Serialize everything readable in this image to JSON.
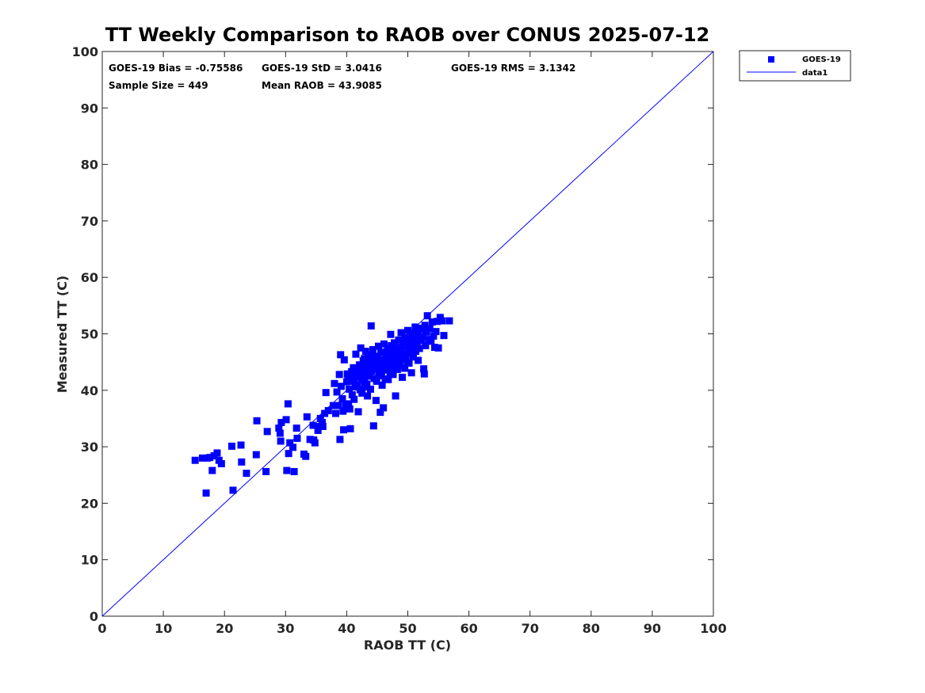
{
  "chart_data": {
    "type": "scatter",
    "title": "TT Weekly Comparison to RAOB over CONUS 2025-07-12",
    "xlabel": "RAOB TT (C)",
    "ylabel": "Measured TT (C)",
    "xlim": [
      0,
      100
    ],
    "ylim": [
      0,
      100
    ],
    "xticks": [
      0,
      10,
      20,
      30,
      40,
      50,
      60,
      70,
      80,
      90,
      100
    ],
    "yticks": [
      0,
      10,
      20,
      30,
      40,
      50,
      60,
      70,
      80,
      90,
      100
    ],
    "grid": false,
    "legend_position": "outside top-right",
    "stats": {
      "bias": "GOES-19 Bias = -0.75586",
      "std": "GOES-19 StD = 3.0416",
      "rms": "GOES-19 RMS = 3.1342",
      "sample": "Sample Size = 449",
      "mean": "Mean RAOB = 43.9085"
    },
    "series": [
      {
        "name": "GOES-19",
        "marker": "square",
        "color": "#0000ff",
        "points": [
          [
            15.2,
            27.6
          ],
          [
            16.4,
            28.0
          ],
          [
            17.0,
            21.8
          ],
          [
            17.2,
            28.0
          ],
          [
            17.6,
            28.1
          ],
          [
            18.0,
            25.8
          ],
          [
            18.3,
            28.4
          ],
          [
            18.8,
            28.9
          ],
          [
            19.1,
            27.6
          ],
          [
            19.5,
            27.0
          ],
          [
            21.2,
            30.1
          ],
          [
            21.4,
            22.3
          ],
          [
            22.7,
            30.3
          ],
          [
            22.8,
            27.3
          ],
          [
            23.6,
            25.3
          ],
          [
            25.2,
            28.6
          ],
          [
            25.3,
            34.6
          ],
          [
            26.8,
            25.6
          ],
          [
            27.0,
            32.7
          ],
          [
            28.9,
            33.3
          ],
          [
            29.1,
            32.4
          ],
          [
            29.2,
            31.0
          ],
          [
            29.3,
            34.3
          ],
          [
            30.1,
            34.8
          ],
          [
            30.2,
            25.8
          ],
          [
            30.4,
            37.6
          ],
          [
            30.5,
            28.8
          ],
          [
            30.7,
            30.7
          ],
          [
            31.2,
            29.9
          ],
          [
            31.4,
            25.6
          ],
          [
            31.8,
            33.3
          ],
          [
            31.9,
            31.5
          ],
          [
            33.0,
            28.7
          ],
          [
            33.3,
            28.3
          ],
          [
            33.5,
            35.3
          ],
          [
            34.0,
            31.3
          ],
          [
            34.5,
            33.8
          ],
          [
            34.6,
            31.2
          ],
          [
            34.8,
            30.7
          ],
          [
            35.3,
            32.9
          ],
          [
            35.4,
            33.6
          ],
          [
            35.7,
            35.0
          ],
          [
            36.0,
            34.3
          ],
          [
            36.1,
            33.6
          ],
          [
            36.4,
            35.9
          ],
          [
            36.6,
            39.6
          ],
          [
            37.0,
            36.4
          ],
          [
            37.8,
            37.3
          ],
          [
            38.0,
            41.2
          ],
          [
            38.2,
            35.9
          ],
          [
            38.4,
            39.7
          ],
          [
            38.6,
            37.3
          ],
          [
            38.8,
            42.8
          ],
          [
            38.9,
            31.3
          ],
          [
            39.0,
            46.3
          ],
          [
            39.1,
            40.7
          ],
          [
            39.3,
            38.5
          ],
          [
            39.4,
            36.3
          ],
          [
            39.5,
            33.0
          ],
          [
            39.6,
            45.4
          ],
          [
            39.8,
            37.4
          ],
          [
            40.0,
            41.5
          ],
          [
            40.2,
            42.0
          ],
          [
            40.3,
            37.6
          ],
          [
            40.4,
            40.2
          ],
          [
            40.5,
            36.7
          ],
          [
            40.6,
            33.2
          ],
          [
            40.8,
            43.3
          ],
          [
            40.9,
            39.2
          ],
          [
            41.0,
            41.6
          ],
          [
            41.1,
            44.0
          ],
          [
            41.2,
            38.4
          ],
          [
            41.3,
            42.7
          ],
          [
            41.4,
            40.6
          ],
          [
            41.5,
            46.4
          ],
          [
            41.6,
            43.9
          ],
          [
            41.8,
            41.0
          ],
          [
            41.9,
            36.2
          ],
          [
            42.0,
            42.3
          ],
          [
            42.1,
            44.5
          ],
          [
            42.2,
            40.1
          ],
          [
            42.3,
            47.5
          ],
          [
            42.4,
            43.0
          ],
          [
            42.5,
            39.5
          ],
          [
            42.6,
            41.8
          ],
          [
            42.7,
            45.2
          ],
          [
            42.8,
            44.1
          ],
          [
            42.9,
            42.2
          ],
          [
            43.0,
            40.6
          ],
          [
            43.1,
            46.9
          ],
          [
            43.2,
            43.6
          ],
          [
            43.3,
            41.1
          ],
          [
            43.4,
            39.0
          ],
          [
            43.5,
            45.8
          ],
          [
            43.6,
            44.7
          ],
          [
            43.7,
            42.9
          ],
          [
            43.8,
            46.3
          ],
          [
            43.9,
            40.2
          ],
          [
            44.0,
            51.4
          ],
          [
            44.1,
            43.4
          ],
          [
            44.2,
            45.1
          ],
          [
            44.3,
            47.2
          ],
          [
            44.4,
            33.7
          ],
          [
            44.5,
            42.1
          ],
          [
            44.6,
            44.0
          ],
          [
            44.7,
            46.0
          ],
          [
            44.8,
            38.2
          ],
          [
            44.9,
            41.6
          ],
          [
            45.0,
            45.5
          ],
          [
            45.1,
            43.8
          ],
          [
            45.2,
            47.8
          ],
          [
            45.3,
            42.6
          ],
          [
            45.4,
            44.9
          ],
          [
            45.5,
            36.1
          ],
          [
            45.6,
            46.7
          ],
          [
            45.7,
            43.2
          ],
          [
            45.8,
            40.9
          ],
          [
            45.9,
            45.3
          ],
          [
            46.0,
            36.9
          ],
          [
            46.1,
            48.2
          ],
          [
            46.2,
            44.3
          ],
          [
            46.3,
            42.0
          ],
          [
            46.4,
            46.1
          ],
          [
            46.5,
            43.6
          ],
          [
            46.6,
            45.0
          ],
          [
            46.7,
            47.4
          ],
          [
            46.8,
            41.9
          ],
          [
            46.9,
            44.6
          ],
          [
            47.0,
            46.5
          ],
          [
            47.1,
            43.0
          ],
          [
            47.2,
            49.9
          ],
          [
            47.3,
            45.7
          ],
          [
            47.4,
            44.1
          ],
          [
            47.5,
            47.0
          ],
          [
            47.6,
            42.8
          ],
          [
            47.7,
            46.3
          ],
          [
            47.8,
            48.4
          ],
          [
            47.9,
            44.9
          ],
          [
            48.0,
            39.0
          ],
          [
            48.1,
            45.9
          ],
          [
            48.2,
            47.6
          ],
          [
            48.3,
            43.7
          ],
          [
            48.4,
            46.8
          ],
          [
            48.5,
            48.9
          ],
          [
            48.6,
            45.2
          ],
          [
            48.7,
            44.4
          ],
          [
            48.8,
            47.3
          ],
          [
            48.9,
            50.2
          ],
          [
            49.0,
            46.4
          ],
          [
            49.1,
            42.3
          ],
          [
            49.2,
            48.1
          ],
          [
            49.3,
            45.6
          ],
          [
            49.4,
            47.7
          ],
          [
            49.5,
            43.9
          ],
          [
            49.6,
            49.3
          ],
          [
            49.7,
            46.0
          ],
          [
            49.8,
            48.6
          ],
          [
            49.9,
            45.0
          ],
          [
            50.0,
            50.6
          ],
          [
            50.1,
            47.2
          ],
          [
            50.2,
            44.8
          ],
          [
            50.3,
            49.0
          ],
          [
            50.4,
            46.6
          ],
          [
            50.5,
            48.3
          ],
          [
            50.6,
            43.1
          ],
          [
            50.7,
            50.1
          ],
          [
            50.8,
            47.5
          ],
          [
            50.9,
            45.9
          ],
          [
            51.0,
            49.6
          ],
          [
            51.1,
            48.0
          ],
          [
            51.2,
            51.2
          ],
          [
            51.3,
            46.9
          ],
          [
            51.4,
            49.9
          ],
          [
            51.5,
            48.5
          ],
          [
            51.6,
            50.5
          ],
          [
            51.7,
            45.3
          ],
          [
            51.8,
            49.2
          ],
          [
            51.9,
            47.4
          ],
          [
            52.0,
            50.8
          ],
          [
            52.2,
            48.8
          ],
          [
            52.4,
            49.5
          ],
          [
            52.6,
            43.8
          ],
          [
            52.7,
            42.9
          ],
          [
            52.8,
            51.5
          ],
          [
            52.9,
            47.9
          ],
          [
            53.0,
            50.3
          ],
          [
            53.2,
            53.2
          ],
          [
            53.4,
            49.0
          ],
          [
            53.6,
            50.9
          ],
          [
            53.8,
            48.7
          ],
          [
            54.0,
            52.1
          ],
          [
            54.2,
            49.6
          ],
          [
            54.4,
            47.6
          ],
          [
            54.6,
            50.4
          ],
          [
            54.8,
            52.2
          ],
          [
            55.0,
            47.5
          ],
          [
            55.3,
            52.9
          ],
          [
            55.6,
            52.3
          ],
          [
            55.9,
            49.7
          ],
          [
            56.8,
            52.3
          ],
          [
            40.1,
            42.9
          ],
          [
            41.7,
            42.4
          ],
          [
            42.6,
            43.7
          ],
          [
            43.5,
            42.5
          ],
          [
            44.2,
            44.2
          ],
          [
            45.0,
            44.6
          ],
          [
            45.8,
            45.4
          ],
          [
            46.6,
            46.2
          ],
          [
            47.3,
            47.9
          ],
          [
            48.0,
            46.9
          ],
          [
            48.8,
            46.5
          ],
          [
            49.5,
            48.8
          ],
          [
            50.3,
            48.0
          ],
          [
            51.0,
            47.8
          ],
          [
            51.8,
            51.0
          ],
          [
            44.6,
            45.8
          ],
          [
            43.9,
            43.9
          ],
          [
            42.9,
            45.6
          ],
          [
            46.2,
            46.8
          ],
          [
            47.1,
            44.0
          ]
        ]
      },
      {
        "name": "data1",
        "type": "line",
        "color": "#0000ff",
        "x": [
          0,
          100
        ],
        "y": [
          0,
          100
        ]
      }
    ]
  }
}
